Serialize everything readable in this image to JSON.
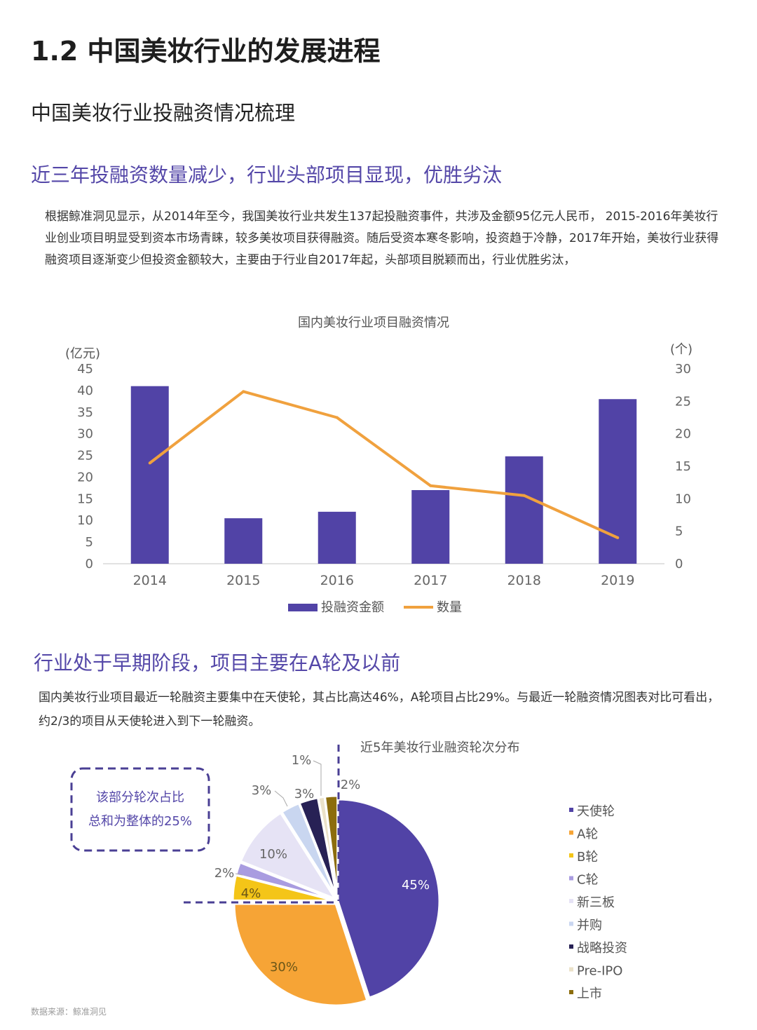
{
  "page": {
    "section_title": "1.2 中国美妆行业的发展进程",
    "subtitle": "中国美妆行业投融资情况梳理",
    "heading1": "近三年投融资数量减少，行业头部项目显现，优胜劣汰",
    "paragraph1": "根据鲸准洞见显示，从2014年至今，我国美妆行业共发生137起投融资事件，共涉及金额95亿元人民币， 2015-2016年美妆行业创业项目明显受到资本市场青睐，较多美妆项目获得融资。随后受资本寒冬影响，投资趋于冷静，2017年开始，美妆行业获得融资项目逐渐变少但投资金额较大，主要由于行业自2017年起，头部项目脱颖而出，行业优胜劣汰，",
    "heading2": "行业处于早期阶段，项目主要在A轮及以前",
    "paragraph2": "国内美妆行业项目最近一轮融资主要集中在天使轮，其占比高达46%，A轮项目占比29%。与最近一轮融资情况图表对比可看出，约2/3的项目从天使轮进入到下一轮融资。",
    "callout": {
      "line1": "该部分轮次占比",
      "line2": "总和为整体的25%"
    },
    "source": "数据来源：鲸准洞见"
  },
  "chart_data": [
    {
      "type": "bar+line",
      "title": "国内美妆行业项目融资情况",
      "categories": [
        "2014",
        "2015",
        "2016",
        "2017",
        "2018",
        "2019"
      ],
      "series": [
        {
          "name": "投融资金额",
          "type": "bar",
          "axis": "left",
          "color": "#5143a6",
          "values": [
            41,
            10.5,
            12,
            17,
            24.8,
            38
          ]
        },
        {
          "name": "数量",
          "type": "line",
          "axis": "right",
          "color": "#f0a13e",
          "values": [
            15.5,
            26.5,
            22.5,
            12,
            10.5,
            4
          ]
        }
      ],
      "y_left": {
        "label": "(亿元)",
        "ylim": [
          0,
          45
        ],
        "ticks": [
          "0",
          "5",
          "10",
          "15",
          "20",
          "25",
          "30",
          "35",
          "40",
          "45"
        ]
      },
      "y_right": {
        "label": "(个)",
        "ylim": [
          0,
          30
        ],
        "ticks": [
          "0",
          "5",
          "10",
          "15",
          "20",
          "25",
          "30"
        ]
      },
      "grid": false,
      "legend": "bottom"
    },
    {
      "type": "pie",
      "title": "近5年美妆行业融资轮次分布",
      "slices": [
        {
          "name": "天使轮",
          "value": 45,
          "label": "45%",
          "color": "#5143a6"
        },
        {
          "name": "A轮",
          "value": 30,
          "label": "30%",
          "color": "#f6a436"
        },
        {
          "name": "B轮",
          "value": 4,
          "label": "4%",
          "color": "#f4c518"
        },
        {
          "name": "C轮",
          "value": 2,
          "label": "2%",
          "color": "#a99ce0"
        },
        {
          "name": "新三板",
          "value": 10,
          "label": "10%",
          "color": "#e6e3f5"
        },
        {
          "name": "并购",
          "value": 3,
          "label": "3%",
          "color": "#c9d6f0"
        },
        {
          "name": "战略投资",
          "value": 3,
          "label": "3%",
          "color": "#272155"
        },
        {
          "name": "Pre-IPO",
          "value": 1,
          "label": "1%",
          "color": "#ebe2c9"
        },
        {
          "name": "上市",
          "value": 2,
          "label": "2%",
          "color": "#8c6d0d"
        }
      ],
      "legend": "right"
    }
  ]
}
